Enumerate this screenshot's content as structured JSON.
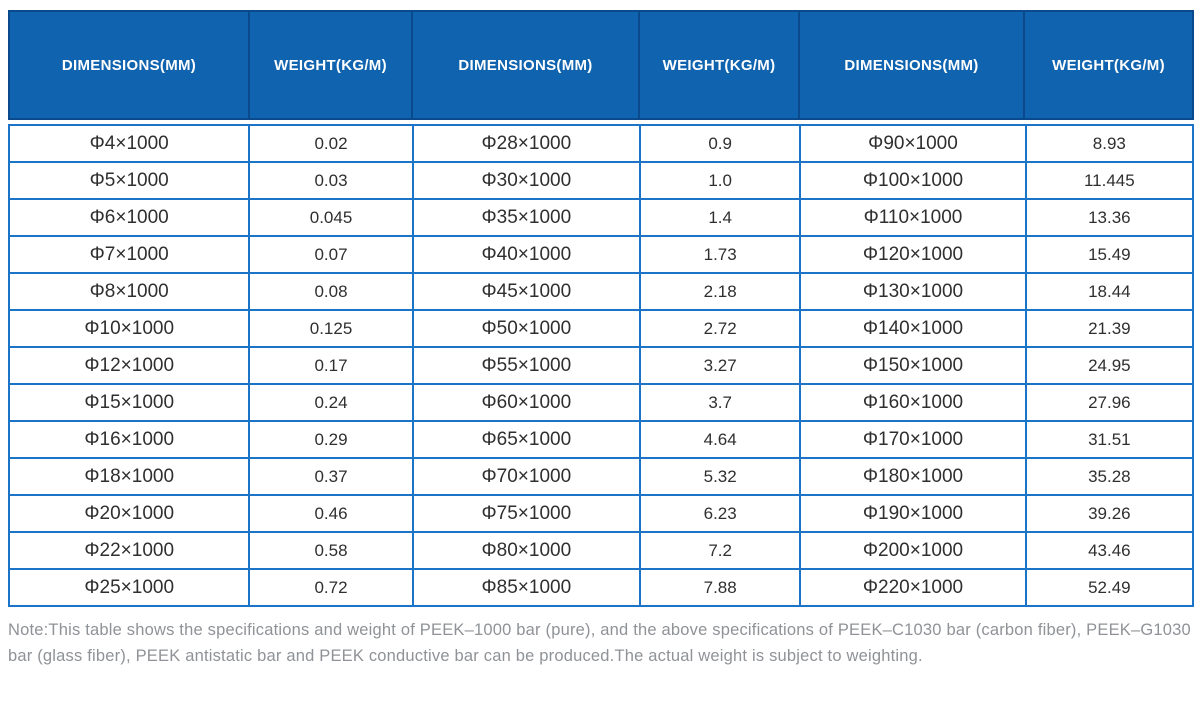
{
  "colors": {
    "header_bg": "#1063ae",
    "header_border": "#0a4a8c",
    "grid_border": "#1c74c8",
    "cell_text": "#2f2f2f",
    "note_text": "#8f9296"
  },
  "table": {
    "headers": [
      "DIMENSIONS(MM)",
      "WEIGHT(KG/M)",
      "DIMENSIONS(MM)",
      "WEIGHT(KG/M)",
      "DIMENSIONS(MM)",
      "WEIGHT(KG/M)"
    ],
    "rows": [
      [
        "Φ4×1000",
        "0.02",
        "Φ28×1000",
        "0.9",
        "Φ90×1000",
        "8.93"
      ],
      [
        "Φ5×1000",
        "0.03",
        "Φ30×1000",
        "1.0",
        "Φ100×1000",
        "11.445"
      ],
      [
        "Φ6×1000",
        "0.045",
        "Φ35×1000",
        "1.4",
        "Φ110×1000",
        "13.36"
      ],
      [
        "Φ7×1000",
        "0.07",
        "Φ40×1000",
        "1.73",
        "Φ120×1000",
        "15.49"
      ],
      [
        "Φ8×1000",
        "0.08",
        "Φ45×1000",
        "2.18",
        "Φ130×1000",
        "18.44"
      ],
      [
        "Φ10×1000",
        "0.125",
        "Φ50×1000",
        "2.72",
        "Φ140×1000",
        "21.39"
      ],
      [
        "Φ12×1000",
        "0.17",
        "Φ55×1000",
        "3.27",
        "Φ150×1000",
        "24.95"
      ],
      [
        "Φ15×1000",
        "0.24",
        "Φ60×1000",
        "3.7",
        "Φ160×1000",
        "27.96"
      ],
      [
        "Φ16×1000",
        "0.29",
        "Φ65×1000",
        "4.64",
        "Φ170×1000",
        "31.51"
      ],
      [
        "Φ18×1000",
        "0.37",
        "Φ70×1000",
        "5.32",
        "Φ180×1000",
        "35.28"
      ],
      [
        "Φ20×1000",
        "0.46",
        "Φ75×1000",
        "6.23",
        "Φ190×1000",
        "39.26"
      ],
      [
        "Φ22×1000",
        "0.58",
        "Φ80×1000",
        "7.2",
        "Φ200×1000",
        "43.46"
      ],
      [
        "Φ25×1000",
        "0.72",
        "Φ85×1000",
        "7.88",
        "Φ220×1000",
        "52.49"
      ]
    ]
  },
  "note": "Note:This table shows the specifications and weight of PEEK–1000 bar (pure), and the above specifications of PEEK–C1030 bar (carbon fiber), PEEK–G1030 bar (glass fiber), PEEK antistatic bar and PEEK conductive bar can be produced.The actual weight is subject to weighting."
}
